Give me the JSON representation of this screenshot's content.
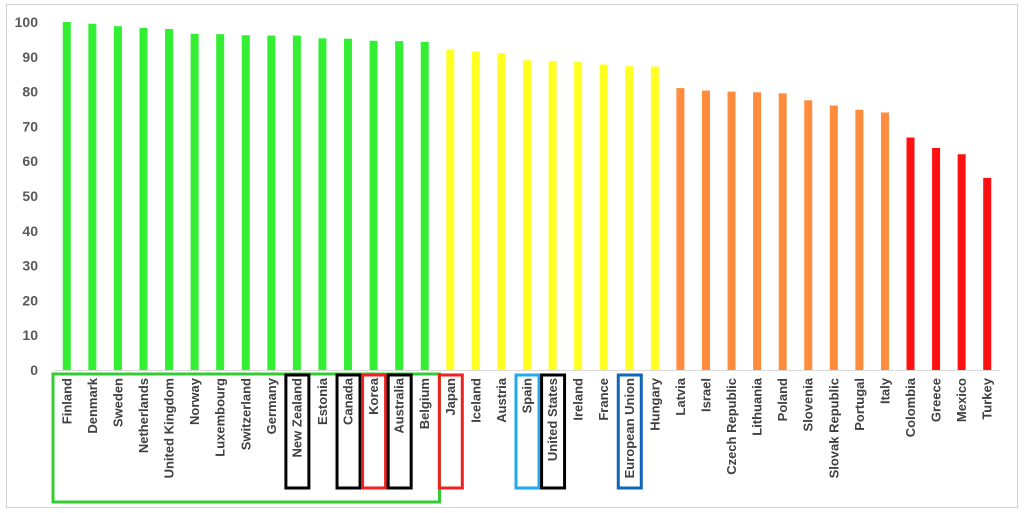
{
  "chart_data": {
    "type": "bar",
    "title": "",
    "xlabel": "",
    "ylabel": "",
    "ylim": [
      0,
      100
    ],
    "yticks": [
      0,
      10,
      20,
      30,
      40,
      50,
      60,
      70,
      80,
      90,
      100
    ],
    "categories": [
      "Finland",
      "Denmark",
      "Sweden",
      "Netherlands",
      "United Kingdom",
      "Norway",
      "Luxembourg",
      "Switzerland",
      "Germany",
      "New Zealand",
      "Estonia",
      "Canada",
      "Korea",
      "Australia",
      "Belgium",
      "Japan",
      "Iceland",
      "Austria",
      "Spain",
      "United States",
      "Ireland",
      "France",
      "European Union",
      "Hungary",
      "Latvia",
      "Israel",
      "Czech Republic",
      "Lithuania",
      "Poland",
      "Slovenia",
      "Slovak Republic",
      "Portugal",
      "Italy",
      "Colombia",
      "Greece",
      "Mexico",
      "Turkey"
    ],
    "values": [
      100,
      99.5,
      98.8,
      98.3,
      98.0,
      96.6,
      96.5,
      96.2,
      96.1,
      96.1,
      95.3,
      95.2,
      94.6,
      94.5,
      94.3,
      92.1,
      91.5,
      91.0,
      89.0,
      88.8,
      88.5,
      87.8,
      87.3,
      87.2,
      81.0,
      80.3,
      80.0,
      79.8,
      79.5,
      77.5,
      76.0,
      74.8,
      74.0,
      66.8,
      63.8,
      62.0,
      55.2
    ],
    "color_groups": [
      {
        "color": "#33ee33",
        "count": 15
      },
      {
        "color": "#ffff22",
        "count": 9
      },
      {
        "color": "#ff8c3c",
        "count": 9
      },
      {
        "color": "#ff1111",
        "count": 4
      }
    ],
    "highlight_boxes": [
      {
        "from": "Finland",
        "to": "Belgium",
        "color": "#33cc33"
      },
      {
        "from": "New Zealand",
        "to": "New Zealand",
        "color": "#000000"
      },
      {
        "from": "Canada",
        "to": "Canada",
        "color": "#000000"
      },
      {
        "from": "Korea",
        "to": "Korea",
        "color": "#ee2222"
      },
      {
        "from": "Australia",
        "to": "Australia",
        "color": "#000000"
      },
      {
        "from": "Japan",
        "to": "Japan",
        "color": "#ee2222"
      },
      {
        "from": "Spain",
        "to": "Spain",
        "color": "#22aaee"
      },
      {
        "from": "United States",
        "to": "United States",
        "color": "#000000"
      },
      {
        "from": "European Union",
        "to": "European Union",
        "color": "#1166bb"
      }
    ],
    "grid": false,
    "legend": "none"
  }
}
